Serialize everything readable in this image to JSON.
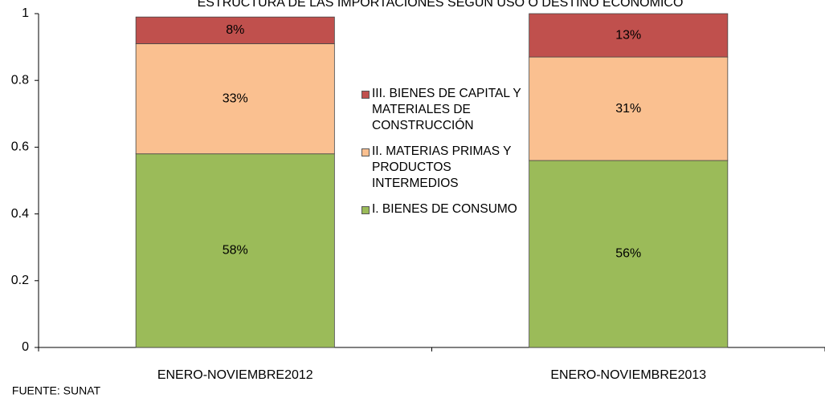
{
  "chart_data": {
    "type": "stacked_bar",
    "title": "ESTRUCTURA DE LAS IMPORTACIONES SEGÚN USO O DESTINO ECONÓMICO",
    "source": "FUENTE: SUNAT",
    "categories": [
      "ENERO-NOVIEMBRE2012",
      "ENERO-NOVIEMBRE2013"
    ],
    "series": [
      {
        "name": "I. BIENES DE CONSUMO",
        "color": "#9bbb59",
        "values": [
          0.58,
          0.56
        ],
        "value_labels": [
          "58%",
          "56%"
        ]
      },
      {
        "name": "II. MATERIAS PRIMAS Y PRODUCTOS INTERMEDIOS",
        "color": "#fac090",
        "values": [
          0.33,
          0.31
        ],
        "value_labels": [
          "33%",
          "31%"
        ]
      },
      {
        "name": "III. BIENES DE CAPITAL Y MATERIALES DE CONSTRUCCIÓN",
        "color": "#c0504d",
        "values": [
          0.08,
          0.13
        ],
        "value_labels": [
          "8%",
          "13%"
        ]
      }
    ],
    "ylim": [
      0,
      1
    ],
    "yticks": [
      0,
      0.2,
      0.4,
      0.6,
      0.8,
      1
    ],
    "grid": false
  }
}
